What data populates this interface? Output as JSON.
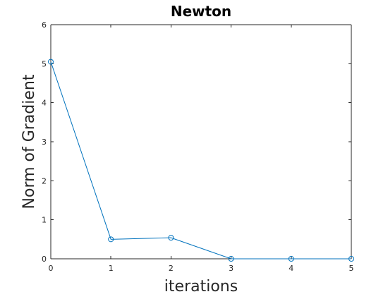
{
  "chart_data": {
    "type": "line",
    "title": "Newton",
    "xlabel": "iterations",
    "ylabel": "Norm of Gradient",
    "x": [
      0,
      1,
      2,
      3,
      4,
      5
    ],
    "series": [
      {
        "values": [
          5.05,
          0.5,
          0.54,
          0.0,
          0.0,
          0.0
        ],
        "marker": "circle",
        "color": "#0072BD"
      }
    ],
    "xlim": [
      0,
      5
    ],
    "ylim": [
      0,
      6
    ],
    "xticks": [
      "0",
      "1",
      "2",
      "3",
      "4",
      "5"
    ],
    "yticks": [
      "0",
      "1",
      "2",
      "3",
      "4",
      "5",
      "6"
    ],
    "grid": false,
    "box": true
  }
}
